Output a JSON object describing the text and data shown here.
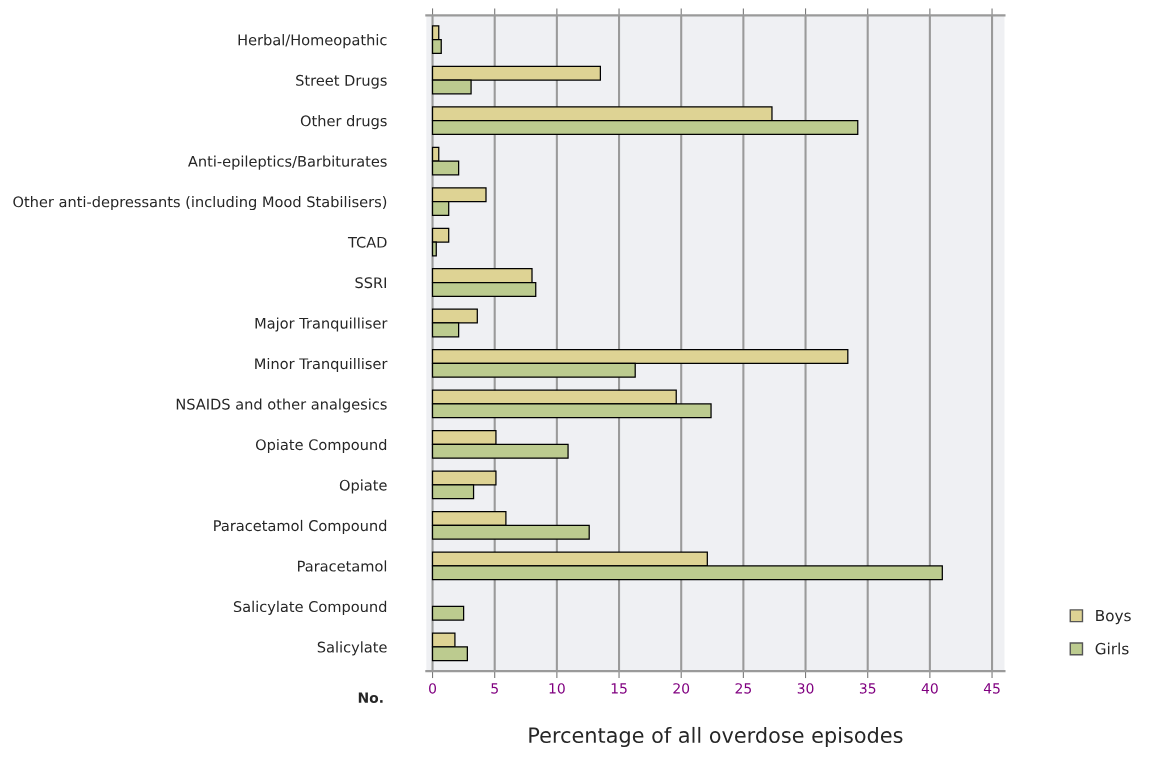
{
  "chart_data": {
    "type": "bar",
    "orientation": "horizontal",
    "xlabel": "Percentage of all overdose episodes",
    "categories": [
      "Herbal/Homeopathic",
      "Street Drugs",
      "Other drugs",
      "Anti-epileptics/Barbiturates",
      "Other anti-depressants (including Mood Stabilisers)",
      "TCAD",
      "SSRI",
      "Major Tranquilliser",
      "Minor Tranquilliser",
      "NSAIDS and other analgesics",
      "Opiate Compound",
      "Opiate",
      "Paracetamol Compound",
      "Paracetamol",
      "Salicylate Compound",
      "Salicylate"
    ],
    "series": [
      {
        "name": "Boys",
        "color": "#ded394",
        "values": [
          0.5,
          13.5,
          27.3,
          0.5,
          4.3,
          1.3,
          8.0,
          3.6,
          33.4,
          19.6,
          5.1,
          5.1,
          5.9,
          22.1,
          null,
          1.8
        ]
      },
      {
        "name": "Girls",
        "color": "#bccb8f",
        "values": [
          0.7,
          3.1,
          34.2,
          2.1,
          1.3,
          0.3,
          8.3,
          2.1,
          16.3,
          22.4,
          10.9,
          3.3,
          12.6,
          41.0,
          2.5,
          2.8
        ]
      }
    ],
    "xlim": [
      -0.5,
      46
    ],
    "xticks": [
      0,
      5,
      10,
      15,
      20,
      25,
      30,
      35,
      40,
      45
    ],
    "grid": "x",
    "legend": "bottom right",
    "annotations": [
      "No."
    ]
  }
}
